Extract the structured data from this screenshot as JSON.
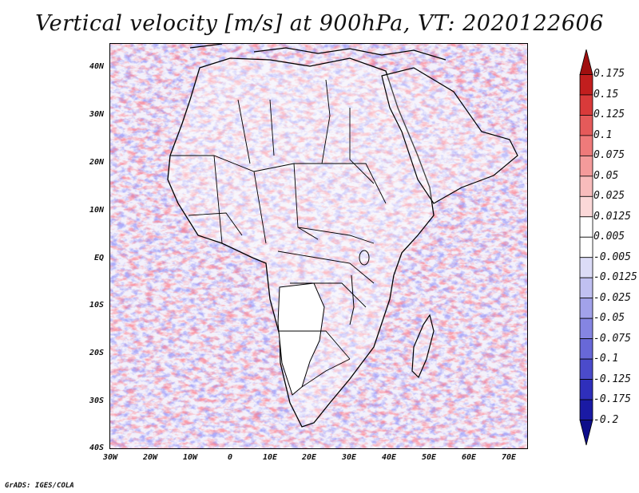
{
  "title": "Vertical velocity [m/s] at 900hPa, VT: 2020122606",
  "credit": "GrADS: IGES/COLA",
  "y_axis": [
    "40N",
    "30N",
    "20N",
    "10N",
    "EQ",
    "10S",
    "20S",
    "30S",
    "40S"
  ],
  "x_axis": [
    "30W",
    "20W",
    "10W",
    "0",
    "10E",
    "20E",
    "30E",
    "40E",
    "50E",
    "60E",
    "70E"
  ],
  "colorbar": {
    "labels": [
      "0.175",
      "0.15",
      "0.125",
      "0.1",
      "0.075",
      "0.05",
      "0.025",
      "0.0125",
      "0.005",
      "-0.005",
      "-0.0125",
      "-0.025",
      "-0.05",
      "-0.075",
      "-0.1",
      "-0.125",
      "-0.175",
      "-0.2"
    ],
    "colors": [
      "#a00f0f",
      "#c21e1e",
      "#d93a3a",
      "#e55a5a",
      "#ef7a7a",
      "#f49b9b",
      "#f8bcbc",
      "#fbd8d8",
      "#ffffff",
      "#ffffff",
      "#dcdcf7",
      "#c0c0f1",
      "#a2a2ea",
      "#8585e2",
      "#6868d8",
      "#4b4bcb",
      "#2f2fbb",
      "#1a1aa4",
      "#0d0d8a"
    ]
  },
  "field_colors": {
    "up": "#e9474a",
    "down": "#5a5ae6",
    "land_white": "#ffffff",
    "border": "#000000"
  }
}
